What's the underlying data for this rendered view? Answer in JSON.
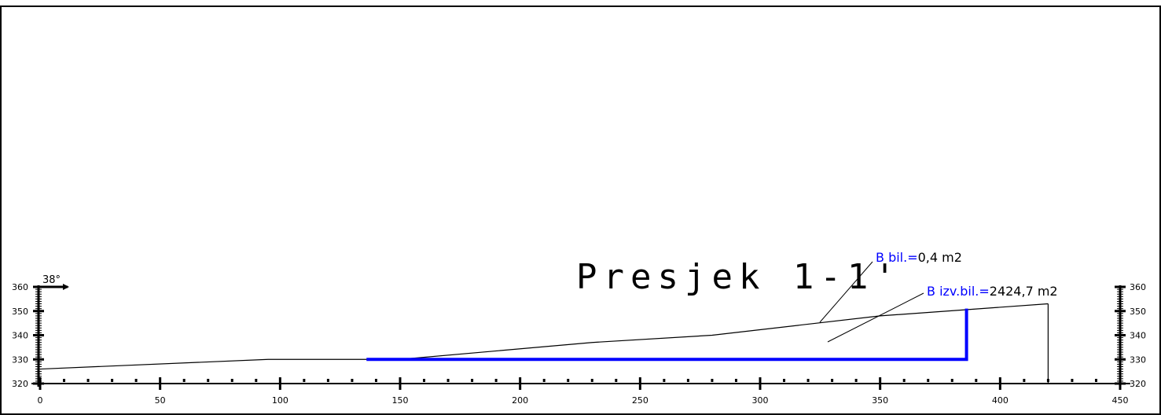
{
  "title": "Presjek 1-1'",
  "angle_label": "38°",
  "annotations": {
    "b_bil": {
      "label": "B bil.=",
      "value": "0,4 m2"
    },
    "b_izv_bil": {
      "label": "B izv.bil.=",
      "value": "2424,7 m2"
    }
  },
  "colors": {
    "terrain": "#000000",
    "cut": "#0000ff",
    "frame": "#000000"
  },
  "chart_data": {
    "type": "line",
    "x_ticks": [
      0,
      50,
      100,
      150,
      200,
      250,
      300,
      350,
      400,
      450
    ],
    "y_ticks": [
      320,
      330,
      340,
      350,
      360
    ],
    "xlim": [
      0,
      450
    ],
    "ylim": [
      320,
      360
    ],
    "series": [
      {
        "role": "terrain",
        "x": [
          0,
          95,
          150,
          230,
          280,
          350,
          420
        ],
        "y": [
          326,
          330,
          330,
          337,
          340,
          348,
          353
        ]
      },
      {
        "role": "cut",
        "x": [
          136,
          386,
          386
        ],
        "y": [
          330,
          330,
          351
        ]
      }
    ],
    "vertical_lines": [
      {
        "x": 420,
        "y_from": 320,
        "y_to": 353
      }
    ]
  }
}
